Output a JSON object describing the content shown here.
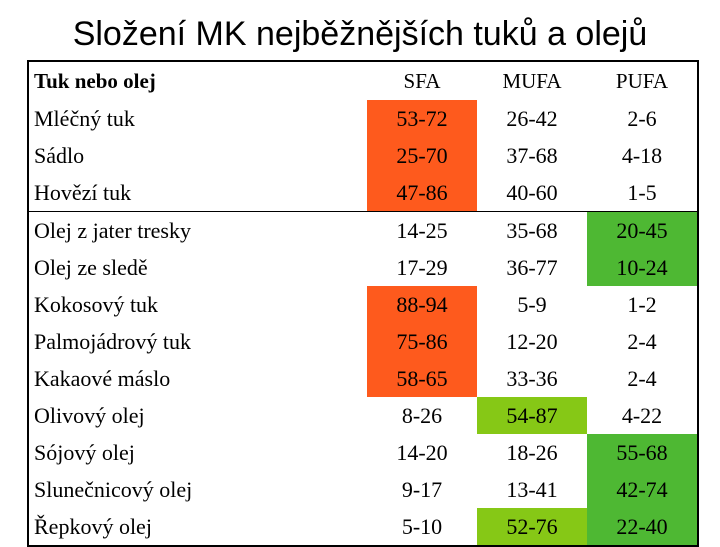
{
  "title": "Složení MK nejběžnějších tuků a olejů",
  "colors": {
    "high_sfa": "#fe5a1d",
    "high_pufa": "#4eb833",
    "high_mufa": "#86c816"
  },
  "table": {
    "headers": [
      "Tuk nebo olej",
      "SFA",
      "MUFA",
      "PUFA"
    ],
    "rows": [
      {
        "name": "Mléčný tuk",
        "sfa": "53-72",
        "mufa": "26-42",
        "pufa": "2-6",
        "highlight": "sfa"
      },
      {
        "name": "Sádlo",
        "sfa": "25-70",
        "mufa": "37-68",
        "pufa": "4-18",
        "highlight": "sfa"
      },
      {
        "name": "Hovězí tuk",
        "sfa": "47-86",
        "mufa": "40-60",
        "pufa": "1-5",
        "highlight": "sfa"
      },
      {
        "name": "Olej z jater tresky",
        "sfa": "14-25",
        "mufa": "35-68",
        "pufa": "20-45",
        "highlight": "pufa"
      },
      {
        "name": "Olej ze sledě",
        "sfa": "17-29",
        "mufa": "36-77",
        "pufa": "10-24",
        "highlight": "pufa"
      },
      {
        "name": "Kokosový tuk",
        "sfa": "88-94",
        "mufa": "5-9",
        "pufa": "1-2",
        "highlight": "sfa"
      },
      {
        "name": "Palmojádrový tuk",
        "sfa": "75-86",
        "mufa": "12-20",
        "pufa": "2-4",
        "highlight": "sfa"
      },
      {
        "name": "Kakaové máslo",
        "sfa": "58-65",
        "mufa": "33-36",
        "pufa": "2-4",
        "highlight": "sfa"
      },
      {
        "name": "Olivový olej",
        "sfa": "8-26",
        "mufa": "54-87",
        "pufa": "4-22",
        "highlight": "mufa"
      },
      {
        "name": "Sójový olej",
        "sfa": "14-20",
        "mufa": "18-26",
        "pufa": "55-68",
        "highlight": "pufa"
      },
      {
        "name": "Slunečnicový olej",
        "sfa": "9-17",
        "mufa": "13-41",
        "pufa": "42-74",
        "highlight": "pufa"
      },
      {
        "name": "Řepkový olej",
        "sfa": "5-10",
        "mufa": "52-76",
        "pufa": "22-40",
        "highlight": "mufa_pufa"
      }
    ]
  }
}
